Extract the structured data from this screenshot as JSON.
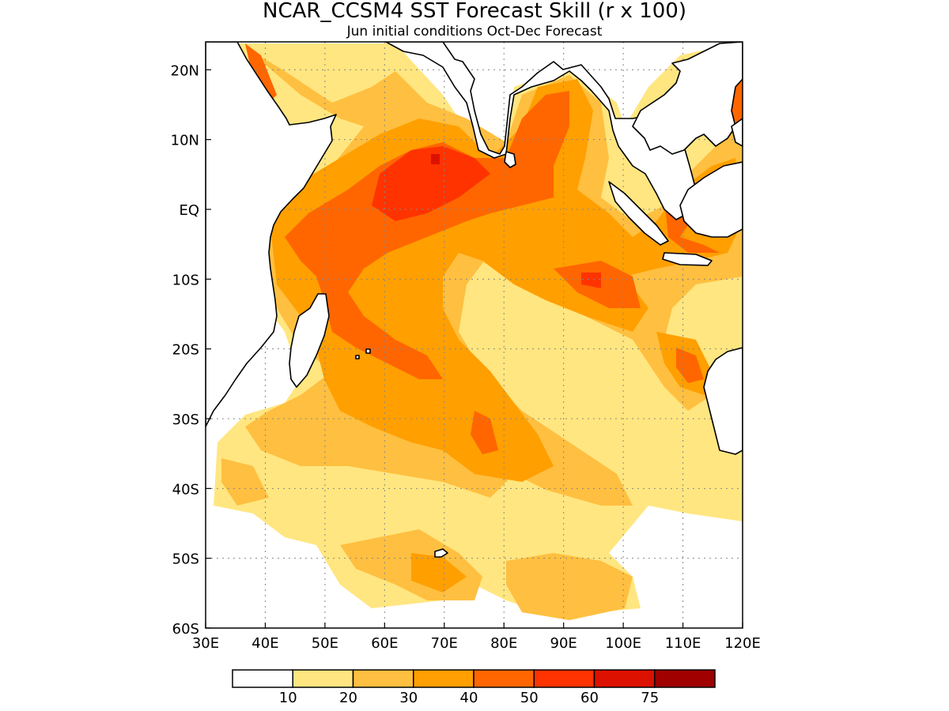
{
  "title": "NCAR_CCSM4 SST Forecast Skill (r x 100)",
  "subtitle": "Jun initial conditions  Oct-Dec Forecast",
  "map": {
    "lon_range": [
      30,
      120
    ],
    "lat_range": [
      -60,
      24
    ],
    "lon_ticks": [
      "30E",
      "40E",
      "50E",
      "60E",
      "70E",
      "80E",
      "90E",
      "100E",
      "110E",
      "120E"
    ],
    "lat_ticks": [
      "20N",
      "10N",
      "EQ",
      "10S",
      "20S",
      "30S",
      "40S",
      "50S",
      "60S"
    ],
    "gridlines": true,
    "coastline_color": "#000000"
  },
  "colorbar": {
    "labels": [
      "10",
      "20",
      "30",
      "40",
      "50",
      "60",
      "75"
    ],
    "colors": [
      "#ffffff",
      "#ffe680",
      "#ffbf40",
      "#ff9f00",
      "#ff6600",
      "#ff3300",
      "#dd1100",
      "#a00000"
    ]
  }
}
